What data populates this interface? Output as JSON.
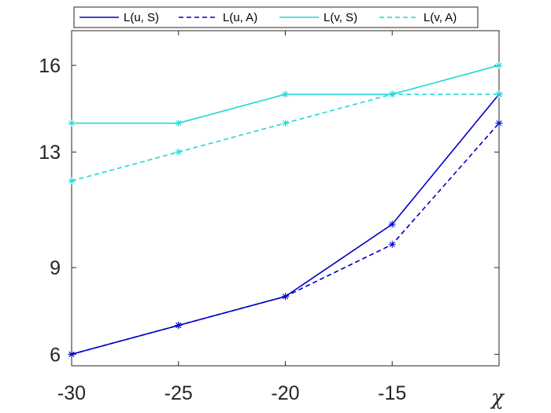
{
  "chart_data": {
    "type": "line",
    "x": [
      -30,
      -25,
      -20,
      -15,
      -10
    ],
    "xticks": [
      "-30",
      "-25",
      "-20",
      "-15"
    ],
    "xlabel": "χ",
    "ylabel": "",
    "xlim": [
      -30,
      -10
    ],
    "ylim": [
      5.6,
      17.2
    ],
    "yticks": [
      6,
      9,
      13,
      16
    ],
    "ytick_labels": [
      "6",
      "9",
      "13",
      "16"
    ],
    "grid": false,
    "legend_position": "top",
    "series": [
      {
        "name": "L(u, S)",
        "values": [
          6,
          7,
          8,
          10.5,
          15
        ],
        "color": "#0000c8",
        "dash": "solid",
        "marker": "asterisk"
      },
      {
        "name": "L(u, A)",
        "values": [
          6,
          7,
          8,
          9.8,
          14
        ],
        "color": "#0000c8",
        "dash": "dashed",
        "marker": "asterisk"
      },
      {
        "name": "L(v, S)",
        "values": [
          14,
          14,
          15,
          15,
          16
        ],
        "color": "#1fd8d8",
        "dash": "solid",
        "marker": "asterisk"
      },
      {
        "name": "L(v, A)",
        "values": [
          12,
          13,
          14,
          15,
          15
        ],
        "color": "#1fd8d8",
        "dash": "dashed",
        "marker": "asterisk"
      }
    ]
  }
}
